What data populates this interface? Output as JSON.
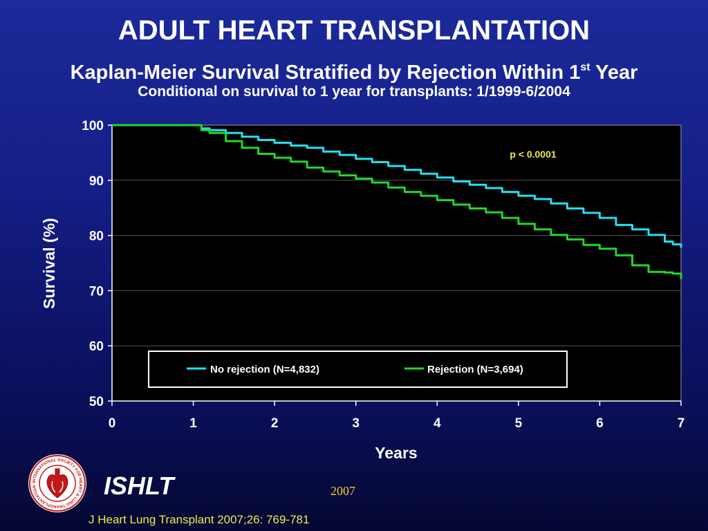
{
  "header": {
    "title": "ADULT HEART TRANSPLANTATION",
    "subtitle_pre": "Kaplan-Meier Survival Stratified by Rejection Within 1",
    "subtitle_sup": "st",
    "subtitle_post": " Year",
    "subtitle2": "Conditional on survival to 1 year for transplants: 1/1999-6/2004"
  },
  "chart_data": {
    "type": "line",
    "xlabel": "Years",
    "ylabel": "Survival (%)",
    "xlim": [
      0,
      7
    ],
    "ylim": [
      50,
      100
    ],
    "x_ticks": [
      "0",
      "1",
      "2",
      "3",
      "4",
      "5",
      "6",
      "7"
    ],
    "y_ticks": [
      "50",
      "60",
      "70",
      "80",
      "90",
      "100"
    ],
    "grid": "horizontal",
    "legend_placement": "bottom-center",
    "annotation": "p < 0.0001",
    "series": [
      {
        "name": "No rejection (N=4,832)",
        "color": "#22e0f0",
        "points": [
          [
            0,
            100
          ],
          [
            1,
            100
          ],
          [
            1.1,
            99.4
          ],
          [
            1.2,
            99.1
          ],
          [
            1.4,
            98.6
          ],
          [
            1.6,
            97.9
          ],
          [
            1.8,
            97.3
          ],
          [
            2,
            96.8
          ],
          [
            2.2,
            96.3
          ],
          [
            2.4,
            95.9
          ],
          [
            2.6,
            95.2
          ],
          [
            2.8,
            94.6
          ],
          [
            3,
            93.9
          ],
          [
            3.2,
            93.3
          ],
          [
            3.4,
            92.6
          ],
          [
            3.6,
            91.9
          ],
          [
            3.8,
            91.2
          ],
          [
            4,
            90.5
          ],
          [
            4.2,
            89.8
          ],
          [
            4.4,
            89.2
          ],
          [
            4.6,
            88.6
          ],
          [
            4.8,
            87.9
          ],
          [
            5,
            87.2
          ],
          [
            5.2,
            86.6
          ],
          [
            5.4,
            85.8
          ],
          [
            5.6,
            84.9
          ],
          [
            5.8,
            84.1
          ],
          [
            6,
            83.2
          ],
          [
            6.2,
            81.9
          ],
          [
            6.4,
            81.1
          ],
          [
            6.6,
            80.1
          ],
          [
            6.8,
            78.9
          ],
          [
            6.9,
            78.4
          ],
          [
            7,
            77.8
          ]
        ]
      },
      {
        "name": "Rejection (N=3,694)",
        "color": "#1fd82a",
        "points": [
          [
            0,
            100
          ],
          [
            1,
            100
          ],
          [
            1.1,
            99.1
          ],
          [
            1.2,
            98.6
          ],
          [
            1.4,
            97.1
          ],
          [
            1.6,
            95.9
          ],
          [
            1.8,
            94.8
          ],
          [
            2,
            94.1
          ],
          [
            2.2,
            93.4
          ],
          [
            2.4,
            92.3
          ],
          [
            2.6,
            91.6
          ],
          [
            2.8,
            90.9
          ],
          [
            3,
            90.3
          ],
          [
            3.2,
            89.6
          ],
          [
            3.4,
            88.7
          ],
          [
            3.6,
            87.9
          ],
          [
            3.8,
            87.2
          ],
          [
            4,
            86.4
          ],
          [
            4.2,
            85.6
          ],
          [
            4.4,
            84.9
          ],
          [
            4.6,
            84.2
          ],
          [
            4.8,
            83.2
          ],
          [
            5,
            82.1
          ],
          [
            5.2,
            81.1
          ],
          [
            5.4,
            80.1
          ],
          [
            5.6,
            79.3
          ],
          [
            5.8,
            78.3
          ],
          [
            6,
            77.6
          ],
          [
            6.2,
            76.4
          ],
          [
            6.4,
            74.6
          ],
          [
            6.6,
            73.4
          ],
          [
            6.8,
            73.3
          ],
          [
            6.9,
            73.1
          ],
          [
            7,
            72.1
          ]
        ]
      }
    ]
  },
  "footer": {
    "org": "ISHLT",
    "year": "2007",
    "citation": "J Heart Lung Transplant 2007;26: 769-781",
    "logo_text": "INTERNATIONAL SOCIETY FOR HEART & LUNG TRANSPLANTATION"
  }
}
